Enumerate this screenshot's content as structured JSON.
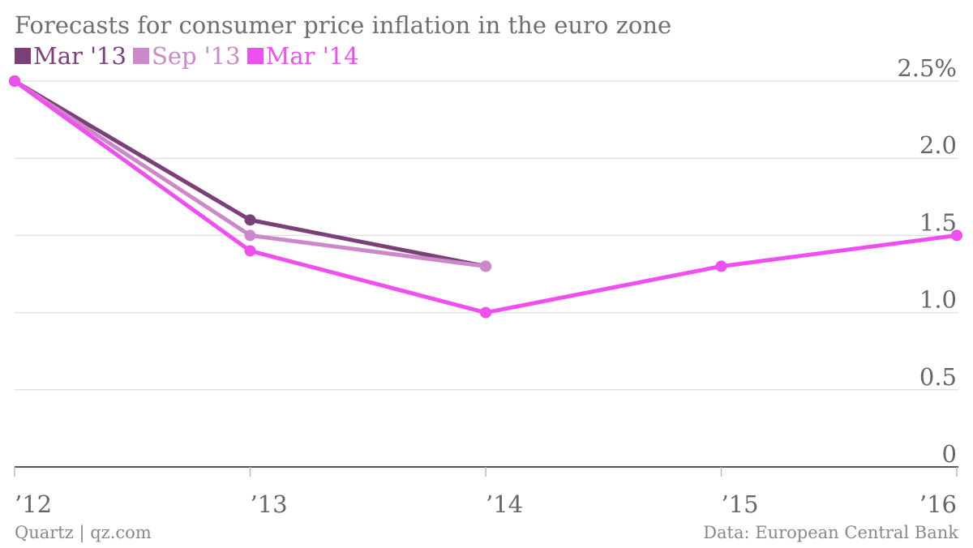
{
  "chart_data": {
    "type": "line",
    "title": "Forecasts for consumer price inflation in the euro zone",
    "x": [
      "’12",
      "’13",
      "’14",
      "’15",
      "’16"
    ],
    "y_ticks": [
      "2.5%",
      "2.0",
      "1.5",
      "1.0",
      "0.5",
      "0"
    ],
    "ylim": [
      0,
      2.5
    ],
    "grid": true,
    "legend_position": "top-left",
    "series": [
      {
        "name": "Mar '13",
        "color": "#7b3f7a",
        "values": [
          2.5,
          1.6,
          1.3,
          null,
          null
        ]
      },
      {
        "name": "Sep '13",
        "color": "#cc88c8",
        "values": [
          2.5,
          1.5,
          1.3,
          null,
          null
        ]
      },
      {
        "name": "Mar '14",
        "color": "#f04ff0",
        "values": [
          2.5,
          1.4,
          1.0,
          1.3,
          1.5
        ]
      }
    ]
  },
  "footer": {
    "source_left": "Quartz | qz.com",
    "source_right": "Data: European Central Bank"
  }
}
